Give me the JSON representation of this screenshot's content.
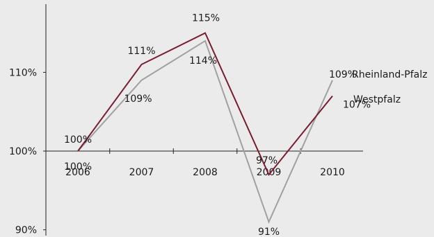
{
  "chart_data": {
    "type": "line",
    "categories": [
      "2006",
      "2007",
      "2008",
      "2009",
      "2010"
    ],
    "series": [
      {
        "name": "Westpfalz",
        "color": "#7a1c2e",
        "values": [
          100,
          111,
          115,
          97,
          107
        ],
        "labels": [
          "100%",
          "111%",
          "115%",
          "97%",
          "107%"
        ]
      },
      {
        "name": "Rheinland-Pfalz",
        "color": "#a0a0a0",
        "values": [
          100,
          109,
          114,
          91,
          109
        ],
        "labels": [
          "100%",
          "109%",
          "114%",
          "91%",
          "109%"
        ]
      }
    ],
    "y_ticks": [
      {
        "value": 90,
        "label": "90%"
      },
      {
        "value": 100,
        "label": "100%"
      },
      {
        "value": 110,
        "label": "110%"
      }
    ],
    "ylim": [
      89.5,
      118.8
    ],
    "grid": false,
    "legend": "right, at line ends"
  }
}
